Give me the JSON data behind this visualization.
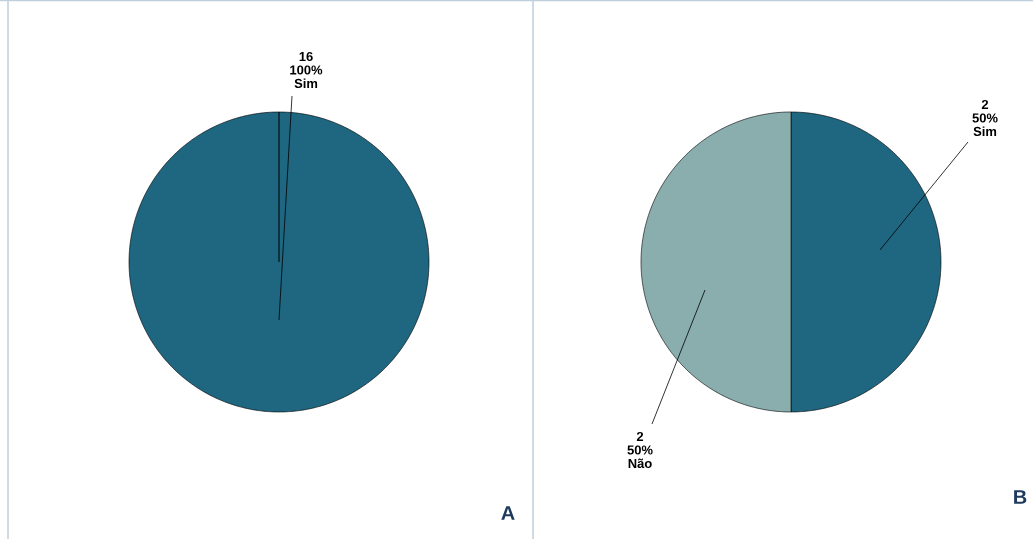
{
  "chart_data": [
    {
      "type": "pie",
      "title": "A",
      "categories": [
        "Sim"
      ],
      "values": [
        100
      ],
      "value_labels": [
        "100%"
      ],
      "annotations": [
        "16"
      ],
      "colors": [
        "#1f6680"
      ]
    },
    {
      "type": "pie",
      "title": "B",
      "categories": [
        "Sim",
        "Não"
      ],
      "values": [
        50,
        50
      ],
      "value_labels": [
        "50%",
        "50%"
      ],
      "annotations": [
        "2",
        "2"
      ],
      "colors": [
        "#1f6680",
        "#8aaeae"
      ]
    }
  ]
}
